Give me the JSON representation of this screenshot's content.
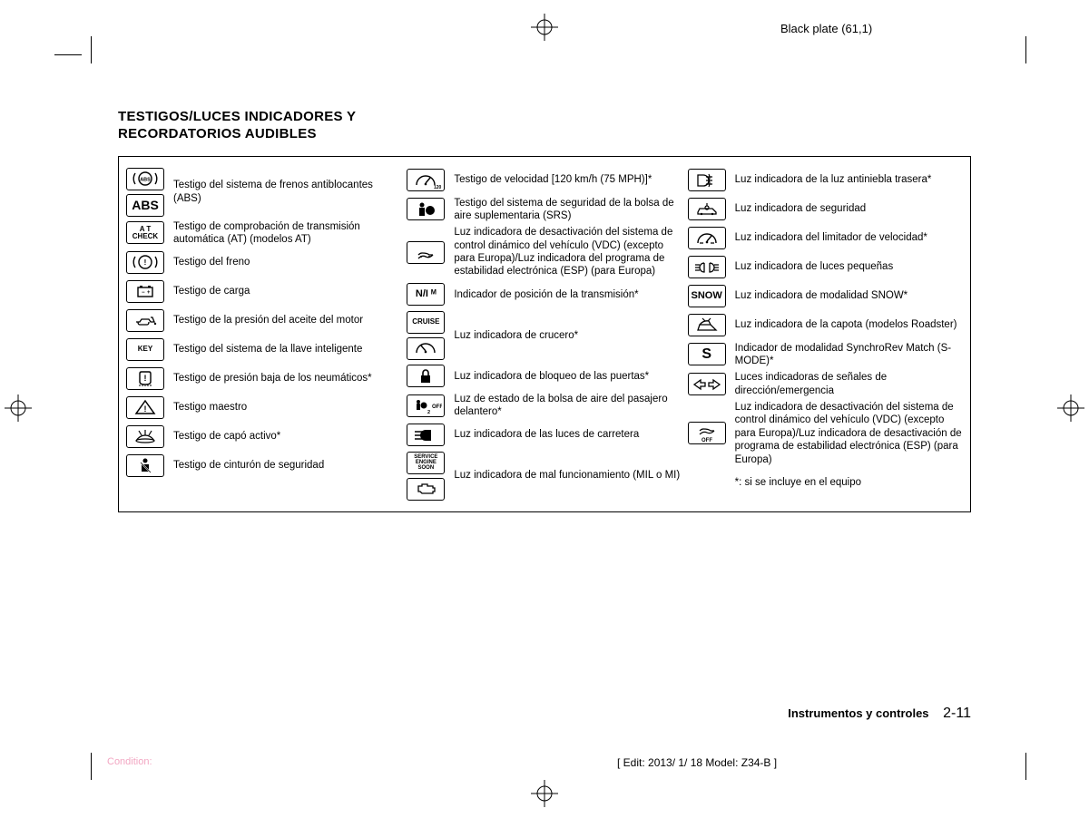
{
  "plate_label": "Black plate (61,1)",
  "title_line1": "TESTIGOS/LUCES INDICADORES Y",
  "title_line2": "RECORDATORIOS AUDIBLES",
  "col1": [
    {
      "icons": [
        "abs-circle",
        "abs-text"
      ],
      "label": "Testigo del sistema de frenos antiblocantes (ABS)"
    },
    {
      "icons": [
        "at-check"
      ],
      "label": "Testigo de comprobación de transmisión automática (AT) (modelos AT)"
    },
    {
      "icons": [
        "brake"
      ],
      "label": "Testigo del freno"
    },
    {
      "icons": [
        "battery"
      ],
      "label": "Testigo de carga"
    },
    {
      "icons": [
        "oil"
      ],
      "label": "Testigo de la presión del aceite del motor"
    },
    {
      "icons": [
        "key"
      ],
      "label": "Testigo del sistema de la llave inteligente"
    },
    {
      "icons": [
        "tpms"
      ],
      "label": "Testigo de presión baja de los neumáticos*"
    },
    {
      "icons": [
        "master"
      ],
      "label": "Testigo maestro"
    },
    {
      "icons": [
        "hood"
      ],
      "label": "Testigo de capó activo*"
    },
    {
      "icons": [
        "seatbelt"
      ],
      "label": "Testigo de cinturón de seguridad"
    }
  ],
  "col2": [
    {
      "icons": [
        "speed"
      ],
      "label": "Testigo de velocidad [120 km/h (75 MPH)]*"
    },
    {
      "icons": [
        "srs"
      ],
      "label": "Testigo del sistema de seguridad de la bolsa de aire suplementaria (SRS)"
    },
    {
      "icons": [
        "vdc"
      ],
      "label": "Luz indicadora de desactivación del sistema de control dinámico del vehículo (VDC) (excepto para Europa)/Luz indicadora del programa de estabilidad electrónica (ESP) (para Europa)"
    },
    {
      "icons": [
        "trans"
      ],
      "label": "Indicador de posición de la transmisión*"
    },
    {
      "icons": [
        "cruise-text",
        "cruise-icon"
      ],
      "label": "Luz indicadora de crucero*"
    },
    {
      "icons": [
        "lock"
      ],
      "label": "Luz indicadora de bloqueo de las puertas*"
    },
    {
      "icons": [
        "airbag-off"
      ],
      "label": "Luz de estado de la bolsa de aire del pasajero delantero*"
    },
    {
      "icons": [
        "highbeam"
      ],
      "label": "Luz indicadora de las luces de carretera"
    },
    {
      "icons": [
        "service",
        "engine-outline"
      ],
      "label": "Luz indicadora de mal funcionamiento (MIL o MI)"
    }
  ],
  "col3": [
    {
      "icons": [
        "rearfog"
      ],
      "label": "Luz indicadora de la luz antiniebla trasera*"
    },
    {
      "icons": [
        "security"
      ],
      "label": "Luz indicadora de seguridad"
    },
    {
      "icons": [
        "speedlimit"
      ],
      "label": "Luz indicadora del limitador de velocidad*"
    },
    {
      "icons": [
        "smalllights"
      ],
      "label": "Luz indicadora de luces pequeñas"
    },
    {
      "icons": [
        "snow"
      ],
      "label": "Luz indicadora de modalidad SNOW*"
    },
    {
      "icons": [
        "softtop"
      ],
      "label": "Luz indicadora de la capota (modelos Roadster)"
    },
    {
      "icons": [
        "smode"
      ],
      "label": "Indicador de modalidad SynchroRev Match (S-MODE)*"
    },
    {
      "icons": [
        "hazard"
      ],
      "label": "Luces indicadoras de señales de dirección/emergencia"
    },
    {
      "icons": [
        "vdc-off"
      ],
      "label": "Luz indicadora de desactivación del sistema de control dinámico del vehículo (VDC) (excepto para Europa)/Luz indicadora de desactivación de programa de estabilidad electrónica (ESP) (para Europa)"
    },
    {
      "icons": [],
      "label": "*: si se incluye en el equipo"
    }
  ],
  "footer_section": "Instrumentos y controles",
  "footer_page": "2-11",
  "edit_info": "[ Edit: 2013/ 1/ 18   Model: Z34-B ]",
  "condition_label": "Condition:",
  "icon_renderings": {
    "abs-circle": {
      "type": "svg",
      "svg": "<svg viewBox='0 0 36 22'><circle cx='18' cy='11' r='7' fill='none' stroke='#000' stroke-width='1.4'/><path d='M7 5 A11 11 0 0 0 7 17' fill='none' stroke='#000' stroke-width='1.4'/><path d='M29 5 A11 11 0 0 1 29 17' fill='none' stroke='#000' stroke-width='1.4'/><text x='18' y='13.5' text-anchor='middle' font-size='5.5' font-family='Arial' font-weight='bold'>ABS</text></svg>"
    },
    "abs-text": {
      "type": "text",
      "text": "ABS",
      "fs": "14px"
    },
    "at-check": {
      "type": "text",
      "text": "A T\nCHECK",
      "fs": "8px"
    },
    "brake": {
      "type": "svg",
      "svg": "<svg viewBox='0 0 36 22'><circle cx='18' cy='11' r='7' fill='none' stroke='#000' stroke-width='1.4'/><path d='M7 5 A11 11 0 0 0 7 17' fill='none' stroke='#000' stroke-width='1.4'/><path d='M29 5 A11 11 0 0 1 29 17' fill='none' stroke='#000' stroke-width='1.4'/><text x='18' y='14' text-anchor='middle' font-size='8' font-family='Arial' font-weight='bold'>!</text></svg>"
    },
    "battery": {
      "type": "svg",
      "svg": "<svg viewBox='0 0 36 22'><rect x='10' y='7' width='16' height='10' fill='none' stroke='#000' stroke-width='1.4'/><rect x='12' y='5' width='3' height='2' fill='#000'/><rect x='21' y='5' width='3' height='2' fill='#000'/><text x='14' y='14' font-size='6' font-family='Arial'>−</text><text x='20' y='14' font-size='6' font-family='Arial'>+</text></svg>"
    },
    "oil": {
      "type": "svg",
      "svg": "<svg viewBox='0 0 36 22'><path d='M8 13 L12 13 L14 10 L22 10 L24 13 L28 13 L26 8 L24 8 M10 13 Q10 16 12 16 L20 16 Q22 16 22 13' fill='none' stroke='#000' stroke-width='1.3'/><circle cx='29' cy='15' r='1.2' fill='#000'/></svg>"
    },
    "key": {
      "type": "text",
      "text": "KEY",
      "fs": "8px",
      "extra": "key-icon"
    },
    "tpms": {
      "type": "svg",
      "svg": "<svg viewBox='0 0 36 22'><path d='M12 6 Q12 4 14 4 L22 4 Q24 4 24 6 L24 15 Q24 18 18 18 Q12 18 12 15 Z' fill='none' stroke='#000' stroke-width='1.4'/><text x='18' y='14' text-anchor='middle' font-size='9' font-family='Arial' font-weight='bold'>!</text><path d='M12 18 L12 20 M15 18.5 L15 20 M18 19 L18 20 M21 18.5 L21 20 M24 18 L24 20' stroke='#000' stroke-width='1'/></svg>"
    },
    "master": {
      "type": "svg",
      "svg": "<svg viewBox='0 0 36 22'><path d='M18 4 L28 18 L8 18 Z' fill='none' stroke='#000' stroke-width='1.5'/><text x='18' y='16' text-anchor='middle' font-size='9' font-family='Arial' font-weight='bold'>!</text></svg>"
    },
    "hood": {
      "type": "svg",
      "svg": "<svg viewBox='0 0 36 22'><path d='M8 16 Q12 10 18 10 Q24 10 28 16' fill='none' stroke='#000' stroke-width='1.3'/><path d='M14 10 L11 5 M18 10 L18 4 M22 10 L25 5' stroke='#000' stroke-width='1.2'/><ellipse cx='18' cy='16' rx='10' ry='2' fill='none' stroke='#000' stroke-width='1.2'/></svg>"
    },
    "seatbelt": {
      "type": "svg",
      "svg": "<svg viewBox='0 0 36 22'><circle cx='18' cy='6' r='2.5' fill='#000'/><path d='M14 10 L22 10 L22 18 L14 18 Z' fill='#000'/><path d='M13 8 L24 19' stroke='#fff' stroke-width='1.8'/><path d='M13 8 L24 19' stroke='#000' stroke-width='0.8'/></svg>"
    },
    "speed": {
      "type": "svg",
      "svg": "<svg viewBox='0 0 36 22'><path d='M8 16 A10 10 0 0 1 28 16' fill='none' stroke='#000' stroke-width='1.4'/><path d='M18 14 L23 8' stroke='#000' stroke-width='1.4'/><circle cx='18' cy='15' r='1.3' fill='#000'/><text x='27' y='20' font-size='5' font-family='Arial' font-weight='bold'>120</text></svg>"
    },
    "srs": {
      "type": "svg",
      "svg": "<svg viewBox='0 0 36 22'><circle cx='14' cy='6' r='2.5' fill='#000'/><path d='M11 9 L17 9 L17 18 L11 18 Z' fill='#000'/><circle cx='23' cy='12' r='5' fill='#000'/></svg>"
    },
    "vdc": {
      "type": "svg",
      "svg": "<svg viewBox='0 0 36 22'><path d='M10 14 Q12 12 14 12 Q20 12 22 14 L26 14' fill='none' stroke='#000' stroke-width='1.3'/><path d='M10 18 Q14 14 18 16 Q22 18 26 14' fill='none' stroke='#000' stroke-width='1.3'/><circle cx='13' cy='16' r='1' fill='#000'/><circle cx='22' cy='16' r='1' fill='#000'/></svg>"
    },
    "trans": {
      "type": "text",
      "text": "N/I ᴹ",
      "fs": "11px"
    },
    "cruise-text": {
      "type": "text",
      "text": "CRUISE",
      "fs": "8px"
    },
    "cruise-icon": {
      "type": "svg",
      "svg": "<svg viewBox='0 0 36 22'><path d='M8 16 A10 10 0 0 1 28 16' fill='none' stroke='#000' stroke-width='1.4'/><path d='M18 14 L13 8' stroke='#000' stroke-width='1.4'/><circle cx='18' cy='15' r='1.3' fill='#000'/></svg>"
    },
    "lock": {
      "type": "svg",
      "svg": "<svg viewBox='0 0 36 22'><rect x='13' y='10' width='10' height='8' fill='#000'/><path d='M15 10 L15 7 A3 3 0 0 1 21 7 L21 10' fill='none' stroke='#000' stroke-width='1.6'/></svg>"
    },
    "airbag-off": {
      "type": "svg",
      "svg": "<svg viewBox='0 0 36 22'><circle cx='10' cy='7' r='2' fill='#000'/><path d='M8 9 L12 9 L12 16 L8 16 Z' fill='#000'/><circle cx='16' cy='11' r='3.5' fill='#000'/><text x='20' y='20' font-size='5.5' font-family='Arial' font-weight='bold'>2</text><text x='25' y='14' font-size='6' font-family='Arial' font-weight='bold'>OFF</text></svg>"
    },
    "highbeam": {
      "type": "svg",
      "svg": "<svg viewBox='0 0 36 22'><path d='M18 5 A6 6 0 0 0 18 17 L24 17 L24 5 Z' fill='#000'/><path d='M6 7 L15 7 M6 11 L15 11 M6 15 L15 15' stroke='#000' stroke-width='1.4'/></svg>"
    },
    "service": {
      "type": "text",
      "text": "SERVICE\nENGINE\nSOON",
      "fs": "6px"
    },
    "engine-outline": {
      "type": "svg",
      "svg": "<svg viewBox='0 0 36 22'><path d='M10 8 L14 8 L14 6 L20 6 L20 8 L26 8 L26 10 L28 10 L28 14 L26 14 L26 16 L14 16 L12 14 L10 14 Z' fill='none' stroke='#000' stroke-width='1.3'/></svg>"
    },
    "rearfog": {
      "type": "svg",
      "svg": "<svg viewBox='0 0 36 22'><path d='M14 5 A6 6 0 0 1 14 17 L8 17 L8 5 Z' fill='none' stroke='#000' stroke-width='1.3'/><path d='M17 7 L24 7 M17 11 L24 11 M17 15 L24 15' stroke='#000' stroke-width='1.3'/><path d='M20 4 Q22 8 20 11 Q22 14 20 18' fill='none' stroke='#000' stroke-width='1.2'/></svg>"
    },
    "security": {
      "type": "svg",
      "svg": "<svg viewBox='0 0 36 22'><path d='M8 14 L10 10 L24 10 L28 14 L28 16 L8 16 Z' fill='none' stroke='#000' stroke-width='1.3'/><circle cx='12' cy='16' r='1.2' fill='#000'/><circle cx='24' cy='16' r='1.2' fill='#000'/><circle cx='18' cy='9' r='2' fill='none' stroke='#000' stroke-width='1.2'/><path d='M18 7 L18 4' stroke='#000' stroke-width='1.2'/></svg>"
    },
    "speedlimit": {
      "type": "svg",
      "svg": "<svg viewBox='0 0 36 22'><path d='M8 16 A10 10 0 0 1 28 16' fill='none' stroke='#000' stroke-width='1.4'/><path d='M10 16 L14 16 M22 16 L26 16' stroke='#000' stroke-width='1.2'/><path d='M18 14 L23 8' stroke='#000' stroke-width='1.4'/><circle cx='18' cy='15' r='1.3' fill='#000'/></svg>"
    },
    "smalllights": {
      "type": "svg",
      "svg": "<svg viewBox='0 0 36 22'><path d='M15 6 A5 5 0 0 0 15 16 L15 6' fill='none' stroke='#000' stroke-width='1.3'/><path d='M21 6 A5 5 0 0 1 21 16 L21 6' fill='none' stroke='#000' stroke-width='1.3'/><path d='M5 8 L10 8 M5 11 L10 11 M5 14 L10 14 M26 8 L31 8 M26 11 L31 11 M26 14 L31 14' stroke='#000' stroke-width='1.2'/></svg>"
    },
    "snow": {
      "type": "text",
      "text": "SNOW",
      "fs": "11px"
    },
    "softtop": {
      "type": "svg",
      "svg": "<svg viewBox='0 0 36 22'><path d='M8 16 L10 10 L22 10 L28 16 Z' fill='none' stroke='#000' stroke-width='1.3'/><path d='M10 10 Q14 5 20 6 L22 10' fill='none' stroke='#000' stroke-width='1.3'/><path d='M16 6 L13 3 M19 6 L22 3' stroke='#000' stroke-width='1.2'/></svg>"
    },
    "smode": {
      "type": "text",
      "text": "S",
      "fs": "16px"
    },
    "hazard": {
      "type": "svg",
      "svg": "<svg viewBox='0 0 36 22'><path d='M4 11 L11 6 L11 9 L16 9 L16 13 L11 13 L11 16 Z' fill='none' stroke='#000' stroke-width='1.3'/><path d='M32 11 L25 6 L25 9 L20 9 L20 13 L25 13 L25 16 Z' fill='none' stroke='#000' stroke-width='1.3'/></svg>"
    },
    "vdc-off": {
      "type": "svg",
      "svg": "<svg viewBox='0 0 36 22'><path d='M10 8 Q12 6 14 6 Q20 6 22 8 L26 8' fill='none' stroke='#000' stroke-width='1.2'/><path d='M10 12 Q14 8 18 10 Q22 12 26 8' fill='none' stroke='#000' stroke-width='1.2'/><text x='18' y='20' text-anchor='middle' font-size='6' font-family='Arial' font-weight='bold'>OFF</text></svg>"
    }
  }
}
